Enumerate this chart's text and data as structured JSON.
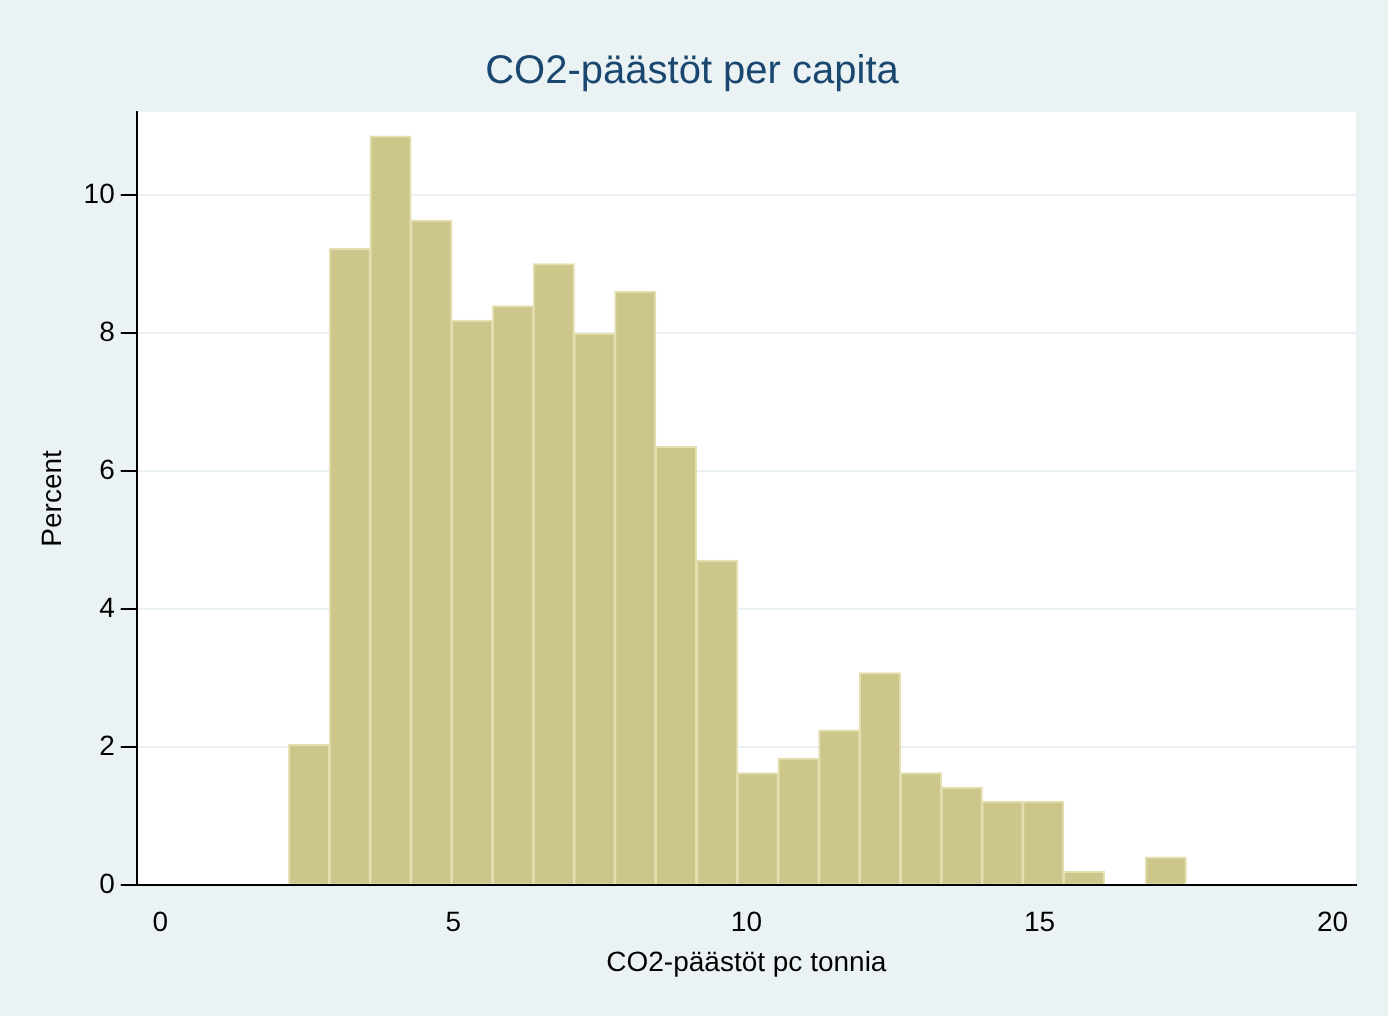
{
  "chart_data": {
    "type": "histogram",
    "title": "CO2-päästöt per capita",
    "xlabel": "CO2-päästöt pc tonnia",
    "ylabel": "Percent",
    "bins": [
      2.19,
      2.89,
      3.58,
      4.28,
      4.97,
      5.67,
      6.37,
      7.06,
      7.76,
      8.45,
      9.15,
      9.85,
      10.54,
      11.24,
      11.93,
      12.63,
      13.33,
      14.02,
      14.72,
      15.41,
      16.11,
      16.81,
      17.5
    ],
    "values": [
      2.03,
      9.22,
      10.85,
      9.63,
      8.18,
      8.39,
      9.0,
      7.99,
      8.6,
      6.35,
      4.7,
      1.62,
      1.83,
      2.24,
      3.07,
      1.62,
      1.41,
      1.21,
      1.21,
      0.19,
      0,
      0.4
    ],
    "color": "#cdc68a",
    "xlim": [
      -0.4,
      20.4
    ],
    "xticks": [
      0,
      5,
      10,
      15,
      20
    ],
    "ylim": [
      0,
      11.2
    ],
    "yticks": [
      0,
      2,
      4,
      6,
      8,
      10
    ],
    "grid": "y"
  }
}
